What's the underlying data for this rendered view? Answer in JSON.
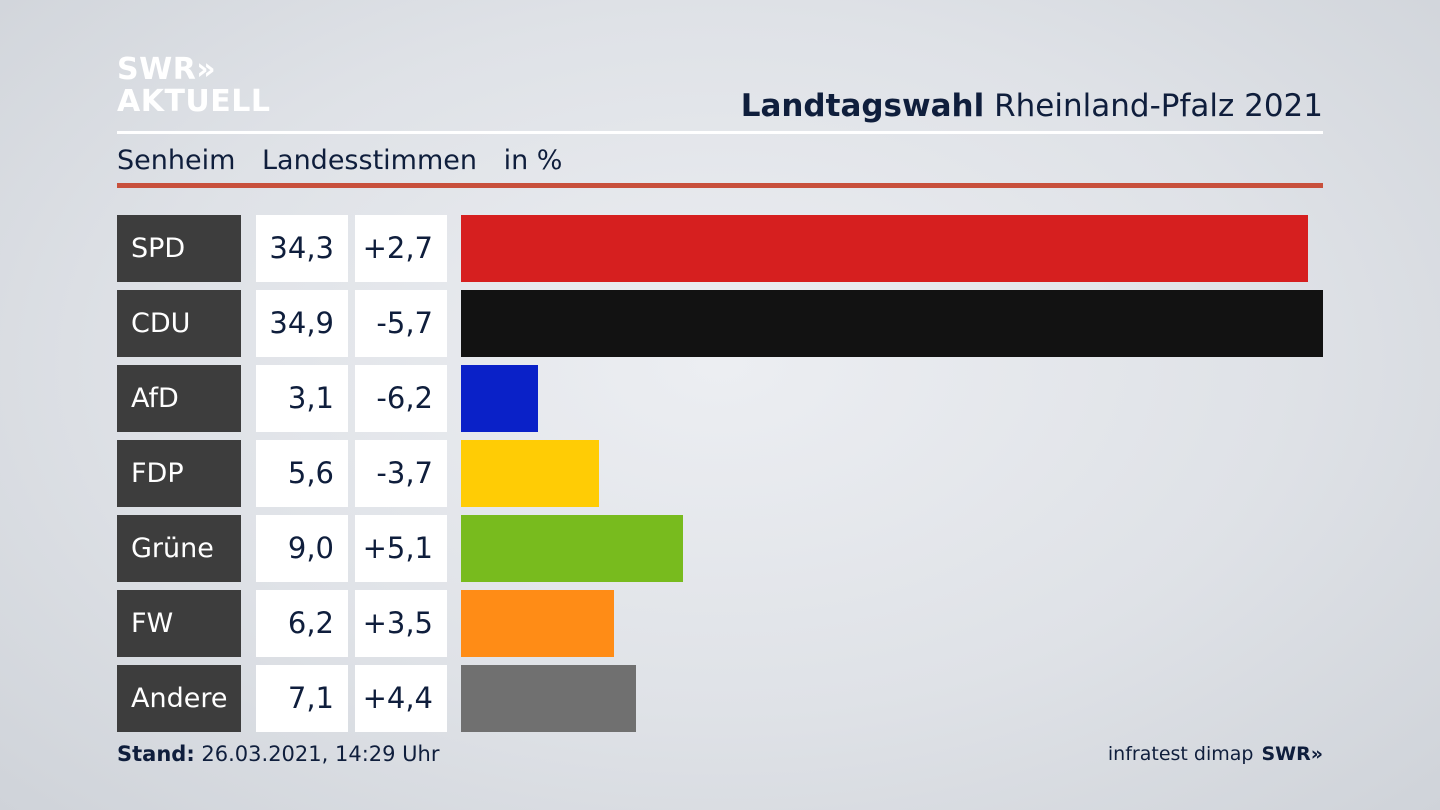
{
  "brand": {
    "line1": "SWR»",
    "line2": "AKTUELL"
  },
  "header": {
    "title_bold": "Landtagswahl",
    "title_rest": " Rheinland-Pfalz 2021"
  },
  "subheader": {
    "place": "Senheim",
    "type": "Landesstimmen",
    "unit": "in %"
  },
  "colors": {
    "accent_rule": "#c8503c",
    "label_bg": "#3d3d3d"
  },
  "chart_data": {
    "type": "bar",
    "categories": [
      "SPD",
      "CDU",
      "AfD",
      "FDP",
      "Grüne",
      "FW",
      "Andere"
    ],
    "values": [
      34.3,
      34.9,
      3.1,
      5.6,
      9.0,
      6.2,
      7.1
    ],
    "value_labels": [
      "34,3",
      "34,9",
      "3,1",
      "5,6",
      "9,0",
      "6,2",
      "7,1"
    ],
    "change_labels": [
      "+2,7",
      "-5,7",
      "-6,2",
      "-3,7",
      "+5,1",
      "+3,5",
      "+4,4"
    ],
    "changes": [
      2.7,
      -5.7,
      -6.2,
      -3.7,
      5.1,
      3.5,
      4.4
    ],
    "bar_colors": [
      "#d61f1f",
      "#121212",
      "#0a21c8",
      "#ffcc05",
      "#78bb1e",
      "#ff8c16",
      "#707070"
    ],
    "orientation": "horizontal",
    "xlim": [
      0,
      34.9
    ]
  },
  "footer": {
    "stand_label": "Stand:",
    "stand_value": " 26.03.2021, 14:29 Uhr",
    "source": "infratest dimap",
    "source_brand": "SWR»"
  }
}
